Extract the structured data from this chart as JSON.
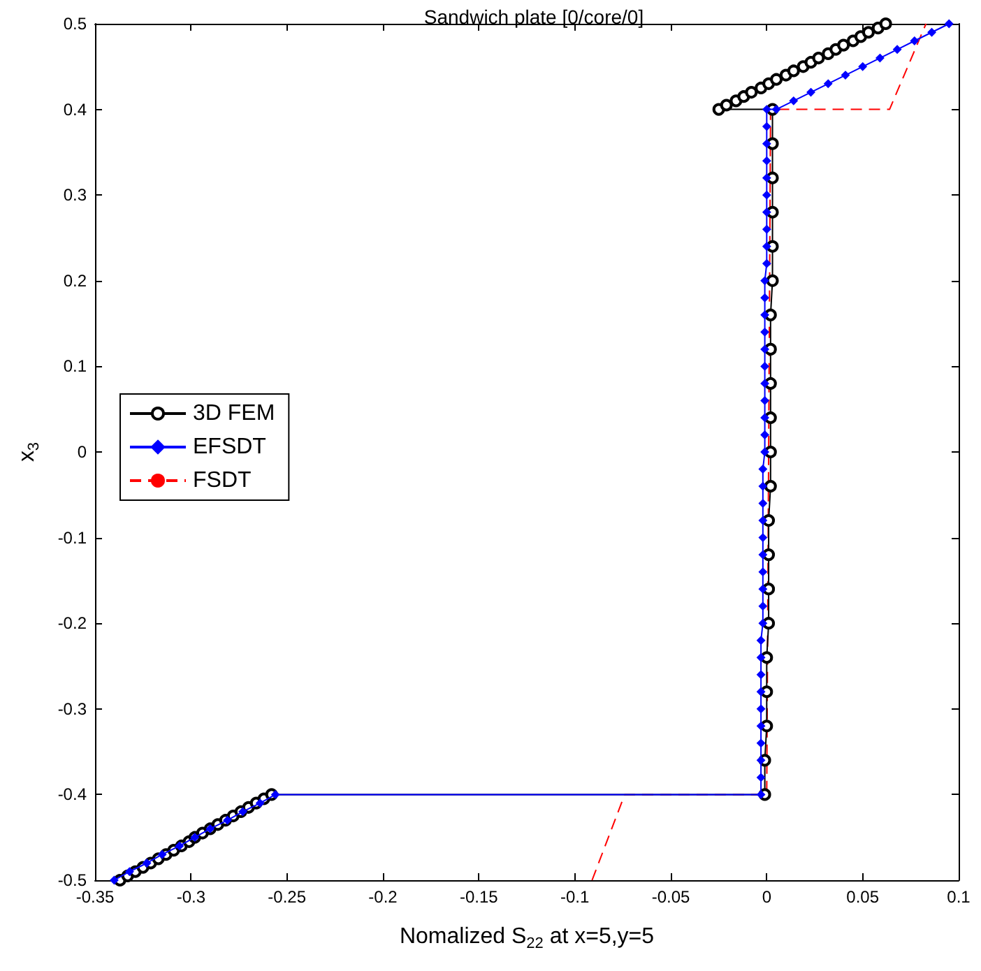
{
  "chart_data": {
    "type": "line",
    "title": "Sandwich plate [0/core/0]",
    "xlabel": "Nomalized S$_{22}$ at x=5,y=5",
    "ylabel": "x$_{3}$",
    "xlim": [
      -0.35,
      0.1
    ],
    "xticks": [
      -0.35,
      -0.3,
      -0.25,
      -0.2,
      -0.15,
      -0.1,
      -0.05,
      0,
      0.05,
      0.1
    ],
    "ylim": [
      -0.5,
      0.5
    ],
    "yticks": [
      -0.5,
      -0.4,
      -0.3,
      -0.2,
      -0.1,
      0,
      0.1,
      0.2,
      0.3,
      0.4,
      0.5
    ],
    "grid": false,
    "legend": "left",
    "series": [
      {
        "name": "3D FEM",
        "color": "#000000",
        "marker": "circle",
        "line_style": "solid",
        "x": [
          -0.337,
          -0.333,
          -0.329,
          -0.325,
          -0.321,
          -0.317,
          -0.313,
          -0.309,
          -0.305,
          -0.301,
          -0.298,
          -0.294,
          -0.29,
          -0.286,
          -0.282,
          -0.278,
          -0.274,
          -0.27,
          -0.266,
          -0.262,
          -0.258,
          -0.001,
          -0.001,
          0,
          0,
          0,
          0.001,
          0.001,
          0.001,
          0.001,
          0.002,
          0.002,
          0.002,
          0.002,
          0.002,
          0.002,
          0.003,
          0.003,
          0.003,
          0.003,
          0.003,
          0.003,
          -0.025,
          -0.021,
          -0.016,
          -0.012,
          -0.008,
          -0.003,
          0.001,
          0.005,
          0.01,
          0.014,
          0.019,
          0.023,
          0.027,
          0.032,
          0.036,
          0.04,
          0.045,
          0.049,
          0.053,
          0.058,
          0.062
        ],
        "values": [
          -0.5,
          -0.495,
          -0.49,
          -0.485,
          -0.48,
          -0.475,
          -0.47,
          -0.465,
          -0.46,
          -0.455,
          -0.45,
          -0.445,
          -0.44,
          -0.435,
          -0.43,
          -0.425,
          -0.42,
          -0.415,
          -0.41,
          -0.405,
          -0.4,
          -0.4,
          -0.36,
          -0.32,
          -0.28,
          -0.24,
          -0.2,
          -0.16,
          -0.12,
          -0.08,
          -0.04,
          0,
          0.04,
          0.08,
          0.12,
          0.16,
          0.2,
          0.24,
          0.28,
          0.32,
          0.36,
          0.4,
          0.4,
          0.405,
          0.41,
          0.415,
          0.42,
          0.425,
          0.43,
          0.435,
          0.44,
          0.445,
          0.45,
          0.455,
          0.46,
          0.465,
          0.47,
          0.475,
          0.48,
          0.485,
          0.49,
          0.495,
          0.5
        ]
      },
      {
        "name": "EFSDT",
        "color": "#0000ff",
        "marker": "diamond",
        "line_style": "solid",
        "x": [
          -0.34,
          -0.332,
          -0.323,
          -0.315,
          -0.306,
          -0.298,
          -0.29,
          -0.281,
          -0.273,
          -0.264,
          -0.256,
          -0.003,
          -0.003,
          -0.003,
          -0.003,
          -0.003,
          -0.003,
          -0.003,
          -0.003,
          -0.003,
          -0.003,
          -0.002,
          -0.002,
          -0.002,
          -0.002,
          -0.002,
          -0.002,
          -0.002,
          -0.002,
          -0.002,
          -0.002,
          -0.001,
          -0.001,
          -0.001,
          -0.001,
          -0.001,
          -0.001,
          -0.001,
          -0.001,
          -0.001,
          -0.001,
          -0.001,
          0,
          0,
          0,
          0,
          0,
          0,
          0,
          0,
          0,
          0,
          0.005,
          0.014,
          0.023,
          0.032,
          0.041,
          0.05,
          0.059,
          0.068,
          0.077,
          0.086,
          0.095
        ],
        "values": [
          -0.5,
          -0.49,
          -0.48,
          -0.47,
          -0.46,
          -0.45,
          -0.44,
          -0.43,
          -0.42,
          -0.41,
          -0.4,
          -0.4,
          -0.38,
          -0.36,
          -0.34,
          -0.32,
          -0.3,
          -0.28,
          -0.26,
          -0.24,
          -0.22,
          -0.2,
          -0.18,
          -0.16,
          -0.14,
          -0.12,
          -0.1,
          -0.08,
          -0.06,
          -0.04,
          -0.02,
          0,
          0.02,
          0.04,
          0.06,
          0.08,
          0.1,
          0.12,
          0.14,
          0.16,
          0.18,
          0.2,
          0.22,
          0.24,
          0.26,
          0.28,
          0.3,
          0.32,
          0.34,
          0.36,
          0.38,
          0.4,
          0.4,
          0.41,
          0.42,
          0.43,
          0.44,
          0.45,
          0.46,
          0.47,
          0.48,
          0.49,
          0.5
        ]
      },
      {
        "name": "FSDT",
        "color": "#ff0000",
        "marker": "none",
        "line_style": "dashed",
        "x": [
          -0.091,
          -0.074,
          0,
          0.002,
          0.064,
          0.083
        ],
        "values": [
          -0.5,
          -0.4,
          -0.4,
          0.4,
          0.4,
          0.5
        ]
      }
    ]
  }
}
